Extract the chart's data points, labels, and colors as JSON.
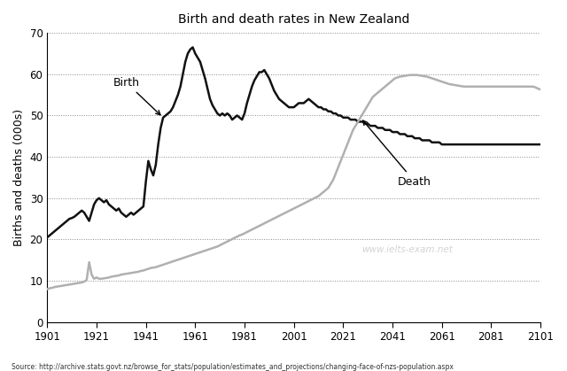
{
  "title": "Birth and death rates in New Zealand",
  "ylabel": "Births and deaths (000s)",
  "source": "Source: http://archive.stats.govt.nz/browse_for_stats/population/estimates_and_projections/changing-face-of-nzs-population.aspx",
  "watermark": "www.ielts-exam.net",
  "xlim": [
    1901,
    2101
  ],
  "ylim": [
    0,
    70
  ],
  "yticks": [
    0,
    10,
    20,
    30,
    40,
    50,
    60,
    70
  ],
  "xticks": [
    1901,
    1921,
    1941,
    1961,
    1981,
    2001,
    2021,
    2041,
    2061,
    2081,
    2101
  ],
  "birth_color": "#111111",
  "death_color": "#b0b0b0",
  "birth_data": [
    [
      1901,
      20.5
    ],
    [
      1902,
      21.0
    ],
    [
      1903,
      21.5
    ],
    [
      1904,
      22.0
    ],
    [
      1905,
      22.5
    ],
    [
      1906,
      23.0
    ],
    [
      1907,
      23.5
    ],
    [
      1908,
      24.0
    ],
    [
      1909,
      24.5
    ],
    [
      1910,
      25.0
    ],
    [
      1911,
      25.2
    ],
    [
      1912,
      25.5
    ],
    [
      1913,
      26.0
    ],
    [
      1914,
      26.5
    ],
    [
      1915,
      27.0
    ],
    [
      1916,
      26.5
    ],
    [
      1917,
      25.5
    ],
    [
      1918,
      24.5
    ],
    [
      1919,
      26.5
    ],
    [
      1920,
      28.5
    ],
    [
      1921,
      29.5
    ],
    [
      1922,
      30.0
    ],
    [
      1923,
      29.5
    ],
    [
      1924,
      29.0
    ],
    [
      1925,
      29.5
    ],
    [
      1926,
      28.5
    ],
    [
      1927,
      28.0
    ],
    [
      1928,
      27.5
    ],
    [
      1929,
      27.0
    ],
    [
      1930,
      27.5
    ],
    [
      1931,
      26.5
    ],
    [
      1932,
      26.0
    ],
    [
      1933,
      25.5
    ],
    [
      1934,
      26.0
    ],
    [
      1935,
      26.5
    ],
    [
      1936,
      26.0
    ],
    [
      1937,
      26.5
    ],
    [
      1938,
      27.0
    ],
    [
      1939,
      27.5
    ],
    [
      1940,
      28.0
    ],
    [
      1941,
      34.0
    ],
    [
      1942,
      39.0
    ],
    [
      1943,
      37.0
    ],
    [
      1944,
      35.5
    ],
    [
      1945,
      38.0
    ],
    [
      1946,
      43.0
    ],
    [
      1947,
      47.0
    ],
    [
      1948,
      49.5
    ],
    [
      1949,
      50.0
    ],
    [
      1950,
      50.5
    ],
    [
      1951,
      51.0
    ],
    [
      1952,
      52.0
    ],
    [
      1953,
      53.5
    ],
    [
      1954,
      55.0
    ],
    [
      1955,
      57.0
    ],
    [
      1956,
      60.0
    ],
    [
      1957,
      63.0
    ],
    [
      1958,
      65.0
    ],
    [
      1959,
      66.0
    ],
    [
      1960,
      66.5
    ],
    [
      1961,
      65.0
    ],
    [
      1962,
      64.0
    ],
    [
      1963,
      63.0
    ],
    [
      1964,
      61.0
    ],
    [
      1965,
      59.0
    ],
    [
      1966,
      56.5
    ],
    [
      1967,
      54.0
    ],
    [
      1968,
      52.5
    ],
    [
      1969,
      51.5
    ],
    [
      1970,
      50.5
    ],
    [
      1971,
      50.0
    ],
    [
      1972,
      50.5
    ],
    [
      1973,
      50.0
    ],
    [
      1974,
      50.5
    ],
    [
      1975,
      50.0
    ],
    [
      1976,
      49.0
    ],
    [
      1977,
      49.5
    ],
    [
      1978,
      50.0
    ],
    [
      1979,
      49.5
    ],
    [
      1980,
      49.0
    ],
    [
      1981,
      50.5
    ],
    [
      1982,
      53.0
    ],
    [
      1983,
      55.0
    ],
    [
      1984,
      57.0
    ],
    [
      1985,
      58.5
    ],
    [
      1986,
      59.5
    ],
    [
      1987,
      60.5
    ],
    [
      1988,
      60.5
    ],
    [
      1989,
      61.0
    ],
    [
      1990,
      60.0
    ],
    [
      1991,
      59.0
    ],
    [
      1992,
      57.5
    ],
    [
      1993,
      56.0
    ],
    [
      1994,
      55.0
    ],
    [
      1995,
      54.0
    ],
    [
      1996,
      53.5
    ],
    [
      1997,
      53.0
    ],
    [
      1998,
      52.5
    ],
    [
      1999,
      52.0
    ],
    [
      2000,
      52.0
    ],
    [
      2001,
      52.0
    ],
    [
      2002,
      52.5
    ],
    [
      2003,
      53.0
    ],
    [
      2004,
      53.0
    ],
    [
      2005,
      53.0
    ],
    [
      2006,
      53.5
    ],
    [
      2007,
      54.0
    ],
    [
      2008,
      53.5
    ],
    [
      2009,
      53.0
    ],
    [
      2010,
      52.5
    ],
    [
      2011,
      52.0
    ],
    [
      2012,
      52.0
    ],
    [
      2013,
      51.5
    ],
    [
      2014,
      51.5
    ],
    [
      2015,
      51.0
    ],
    [
      2016,
      51.0
    ],
    [
      2017,
      50.5
    ],
    [
      2018,
      50.5
    ],
    [
      2019,
      50.0
    ],
    [
      2020,
      50.0
    ],
    [
      2021,
      49.5
    ],
    [
      2022,
      49.5
    ],
    [
      2023,
      49.5
    ],
    [
      2024,
      49.0
    ],
    [
      2025,
      49.0
    ],
    [
      2026,
      49.0
    ],
    [
      2027,
      48.5
    ],
    [
      2028,
      48.5
    ],
    [
      2029,
      48.5
    ],
    [
      2030,
      48.0
    ],
    [
      2031,
      48.0
    ],
    [
      2032,
      47.5
    ],
    [
      2033,
      47.5
    ],
    [
      2034,
      47.5
    ],
    [
      2035,
      47.0
    ],
    [
      2036,
      47.0
    ],
    [
      2037,
      47.0
    ],
    [
      2038,
      46.5
    ],
    [
      2039,
      46.5
    ],
    [
      2040,
      46.5
    ],
    [
      2041,
      46.0
    ],
    [
      2042,
      46.0
    ],
    [
      2043,
      46.0
    ],
    [
      2044,
      45.5
    ],
    [
      2045,
      45.5
    ],
    [
      2046,
      45.5
    ],
    [
      2047,
      45.0
    ],
    [
      2048,
      45.0
    ],
    [
      2049,
      45.0
    ],
    [
      2050,
      44.5
    ],
    [
      2051,
      44.5
    ],
    [
      2052,
      44.5
    ],
    [
      2053,
      44.0
    ],
    [
      2054,
      44.0
    ],
    [
      2055,
      44.0
    ],
    [
      2056,
      44.0
    ],
    [
      2057,
      43.5
    ],
    [
      2058,
      43.5
    ],
    [
      2059,
      43.5
    ],
    [
      2060,
      43.5
    ],
    [
      2061,
      43.0
    ],
    [
      2062,
      43.0
    ],
    [
      2063,
      43.0
    ],
    [
      2064,
      43.0
    ],
    [
      2065,
      43.0
    ],
    [
      2066,
      43.0
    ],
    [
      2067,
      43.0
    ],
    [
      2068,
      43.0
    ],
    [
      2069,
      43.0
    ],
    [
      2070,
      43.0
    ],
    [
      2071,
      43.0
    ],
    [
      2072,
      43.0
    ],
    [
      2073,
      43.0
    ],
    [
      2074,
      43.0
    ],
    [
      2075,
      43.0
    ],
    [
      2076,
      43.0
    ],
    [
      2077,
      43.0
    ],
    [
      2078,
      43.0
    ],
    [
      2079,
      43.0
    ],
    [
      2080,
      43.0
    ],
    [
      2081,
      43.0
    ],
    [
      2082,
      43.0
    ],
    [
      2083,
      43.0
    ],
    [
      2084,
      43.0
    ],
    [
      2085,
      43.0
    ],
    [
      2086,
      43.0
    ],
    [
      2087,
      43.0
    ],
    [
      2088,
      43.0
    ],
    [
      2089,
      43.0
    ],
    [
      2090,
      43.0
    ],
    [
      2091,
      43.0
    ],
    [
      2092,
      43.0
    ],
    [
      2093,
      43.0
    ],
    [
      2094,
      43.0
    ],
    [
      2095,
      43.0
    ],
    [
      2096,
      43.0
    ],
    [
      2097,
      43.0
    ],
    [
      2098,
      43.0
    ],
    [
      2099,
      43.0
    ],
    [
      2100,
      43.0
    ],
    [
      2101,
      43.0
    ]
  ],
  "death_data": [
    [
      1901,
      8.0
    ],
    [
      1902,
      8.2
    ],
    [
      1903,
      8.3
    ],
    [
      1904,
      8.5
    ],
    [
      1905,
      8.6
    ],
    [
      1906,
      8.7
    ],
    [
      1907,
      8.8
    ],
    [
      1908,
      8.9
    ],
    [
      1909,
      9.0
    ],
    [
      1910,
      9.1
    ],
    [
      1911,
      9.2
    ],
    [
      1912,
      9.3
    ],
    [
      1913,
      9.4
    ],
    [
      1914,
      9.5
    ],
    [
      1915,
      9.6
    ],
    [
      1916,
      9.8
    ],
    [
      1917,
      10.2
    ],
    [
      1918,
      14.5
    ],
    [
      1919,
      11.5
    ],
    [
      1920,
      10.5
    ],
    [
      1921,
      10.8
    ],
    [
      1922,
      10.5
    ],
    [
      1923,
      10.5
    ],
    [
      1924,
      10.6
    ],
    [
      1925,
      10.7
    ],
    [
      1926,
      10.8
    ],
    [
      1927,
      11.0
    ],
    [
      1928,
      11.1
    ],
    [
      1929,
      11.2
    ],
    [
      1930,
      11.3
    ],
    [
      1931,
      11.5
    ],
    [
      1932,
      11.6
    ],
    [
      1933,
      11.7
    ],
    [
      1934,
      11.8
    ],
    [
      1935,
      11.9
    ],
    [
      1936,
      12.0
    ],
    [
      1937,
      12.1
    ],
    [
      1938,
      12.2
    ],
    [
      1939,
      12.4
    ],
    [
      1940,
      12.5
    ],
    [
      1941,
      12.7
    ],
    [
      1942,
      12.9
    ],
    [
      1943,
      13.1
    ],
    [
      1944,
      13.2
    ],
    [
      1945,
      13.3
    ],
    [
      1946,
      13.5
    ],
    [
      1947,
      13.7
    ],
    [
      1948,
      13.9
    ],
    [
      1949,
      14.1
    ],
    [
      1950,
      14.3
    ],
    [
      1951,
      14.5
    ],
    [
      1952,
      14.7
    ],
    [
      1953,
      14.9
    ],
    [
      1954,
      15.1
    ],
    [
      1955,
      15.3
    ],
    [
      1956,
      15.5
    ],
    [
      1957,
      15.7
    ],
    [
      1958,
      15.9
    ],
    [
      1959,
      16.1
    ],
    [
      1960,
      16.3
    ],
    [
      1961,
      16.5
    ],
    [
      1962,
      16.7
    ],
    [
      1963,
      16.9
    ],
    [
      1964,
      17.1
    ],
    [
      1965,
      17.3
    ],
    [
      1966,
      17.5
    ],
    [
      1967,
      17.7
    ],
    [
      1968,
      17.9
    ],
    [
      1969,
      18.1
    ],
    [
      1970,
      18.3
    ],
    [
      1971,
      18.6
    ],
    [
      1972,
      18.9
    ],
    [
      1973,
      19.2
    ],
    [
      1974,
      19.5
    ],
    [
      1975,
      19.8
    ],
    [
      1976,
      20.1
    ],
    [
      1977,
      20.4
    ],
    [
      1978,
      20.7
    ],
    [
      1979,
      21.0
    ],
    [
      1980,
      21.2
    ],
    [
      1981,
      21.5
    ],
    [
      1982,
      21.8
    ],
    [
      1983,
      22.1
    ],
    [
      1984,
      22.4
    ],
    [
      1985,
      22.7
    ],
    [
      1986,
      23.0
    ],
    [
      1987,
      23.3
    ],
    [
      1988,
      23.6
    ],
    [
      1989,
      23.9
    ],
    [
      1990,
      24.2
    ],
    [
      1991,
      24.5
    ],
    [
      1992,
      24.8
    ],
    [
      1993,
      25.1
    ],
    [
      1994,
      25.4
    ],
    [
      1995,
      25.7
    ],
    [
      1996,
      26.0
    ],
    [
      1997,
      26.3
    ],
    [
      1998,
      26.6
    ],
    [
      1999,
      26.9
    ],
    [
      2000,
      27.2
    ],
    [
      2001,
      27.5
    ],
    [
      2002,
      27.8
    ],
    [
      2003,
      28.1
    ],
    [
      2004,
      28.4
    ],
    [
      2005,
      28.7
    ],
    [
      2006,
      29.0
    ],
    [
      2007,
      29.3
    ],
    [
      2008,
      29.6
    ],
    [
      2009,
      29.9
    ],
    [
      2010,
      30.2
    ],
    [
      2011,
      30.5
    ],
    [
      2012,
      31.0
    ],
    [
      2013,
      31.5
    ],
    [
      2014,
      32.0
    ],
    [
      2015,
      32.5
    ],
    [
      2016,
      33.5
    ],
    [
      2017,
      34.5
    ],
    [
      2018,
      36.0
    ],
    [
      2019,
      37.5
    ],
    [
      2020,
      39.0
    ],
    [
      2021,
      40.5
    ],
    [
      2022,
      42.0
    ],
    [
      2023,
      43.5
    ],
    [
      2024,
      45.0
    ],
    [
      2025,
      46.5
    ],
    [
      2026,
      47.5
    ],
    [
      2027,
      48.5
    ],
    [
      2028,
      49.5
    ],
    [
      2029,
      50.5
    ],
    [
      2030,
      51.5
    ],
    [
      2031,
      52.5
    ],
    [
      2032,
      53.5
    ],
    [
      2033,
      54.5
    ],
    [
      2034,
      55.0
    ],
    [
      2035,
      55.5
    ],
    [
      2036,
      56.0
    ],
    [
      2037,
      56.5
    ],
    [
      2038,
      57.0
    ],
    [
      2039,
      57.5
    ],
    [
      2040,
      58.0
    ],
    [
      2041,
      58.5
    ],
    [
      2042,
      59.0
    ],
    [
      2043,
      59.2
    ],
    [
      2044,
      59.4
    ],
    [
      2045,
      59.5
    ],
    [
      2046,
      59.6
    ],
    [
      2047,
      59.7
    ],
    [
      2048,
      59.8
    ],
    [
      2049,
      59.8
    ],
    [
      2050,
      59.8
    ],
    [
      2051,
      59.8
    ],
    [
      2052,
      59.7
    ],
    [
      2053,
      59.6
    ],
    [
      2054,
      59.5
    ],
    [
      2055,
      59.4
    ],
    [
      2056,
      59.2
    ],
    [
      2057,
      59.0
    ],
    [
      2058,
      58.8
    ],
    [
      2059,
      58.6
    ],
    [
      2060,
      58.4
    ],
    [
      2061,
      58.2
    ],
    [
      2062,
      58.0
    ],
    [
      2063,
      57.8
    ],
    [
      2064,
      57.6
    ],
    [
      2065,
      57.5
    ],
    [
      2066,
      57.4
    ],
    [
      2067,
      57.3
    ],
    [
      2068,
      57.2
    ],
    [
      2069,
      57.1
    ],
    [
      2070,
      57.0
    ],
    [
      2071,
      57.0
    ],
    [
      2072,
      57.0
    ],
    [
      2073,
      57.0
    ],
    [
      2074,
      57.0
    ],
    [
      2075,
      57.0
    ],
    [
      2076,
      57.0
    ],
    [
      2077,
      57.0
    ],
    [
      2078,
      57.0
    ],
    [
      2079,
      57.0
    ],
    [
      2080,
      57.0
    ],
    [
      2081,
      57.0
    ],
    [
      2082,
      57.0
    ],
    [
      2083,
      57.0
    ],
    [
      2084,
      57.0
    ],
    [
      2085,
      57.0
    ],
    [
      2086,
      57.0
    ],
    [
      2087,
      57.0
    ],
    [
      2088,
      57.0
    ],
    [
      2089,
      57.0
    ],
    [
      2090,
      57.0
    ],
    [
      2091,
      57.0
    ],
    [
      2092,
      57.0
    ],
    [
      2093,
      57.0
    ],
    [
      2094,
      57.0
    ],
    [
      2095,
      57.0
    ],
    [
      2096,
      57.0
    ],
    [
      2097,
      57.0
    ],
    [
      2098,
      57.0
    ],
    [
      2099,
      56.8
    ],
    [
      2100,
      56.5
    ],
    [
      2101,
      56.3
    ]
  ]
}
